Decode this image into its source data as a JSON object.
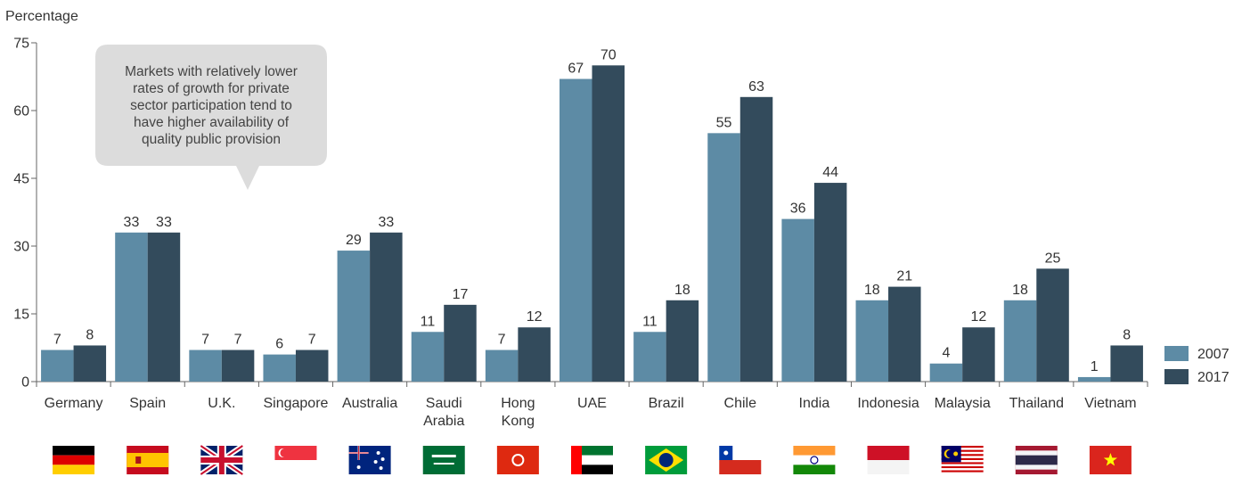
{
  "colors": {
    "series_2007": "#5d8ba5",
    "series_2017": "#334b5c",
    "axis": "#666666",
    "callout_bg": "#dcdcdc"
  },
  "annotation": {
    "text": "Markets with relatively lower\nrates of growth for private\nsector participation tend to\nhave higher availability of\nquality public provision"
  },
  "flags": [
    {
      "category": "Germany",
      "icon": "germany-flag-icon"
    },
    {
      "category": "Spain",
      "icon": "spain-flag-icon"
    },
    {
      "category": "U.K.",
      "icon": "uk-flag-icon"
    },
    {
      "category": "Singapore",
      "icon": "singapore-flag-icon"
    },
    {
      "category": "Australia",
      "icon": "australia-flag-icon"
    },
    {
      "category": "Saudi Arabia",
      "icon": "saudi-arabia-flag-icon"
    },
    {
      "category": "Hong Kong",
      "icon": "hong-kong-flag-icon"
    },
    {
      "category": "UAE",
      "icon": "uae-flag-icon"
    },
    {
      "category": "Brazil",
      "icon": "brazil-flag-icon"
    },
    {
      "category": "Chile",
      "icon": "chile-flag-icon"
    },
    {
      "category": "India",
      "icon": "india-flag-icon"
    },
    {
      "category": "Indonesia",
      "icon": "indonesia-flag-icon"
    },
    {
      "category": "Malaysia",
      "icon": "malaysia-flag-icon"
    },
    {
      "category": "Thailand",
      "icon": "thailand-flag-icon"
    },
    {
      "category": "Vietnam",
      "icon": "vietnam-flag-icon"
    }
  ],
  "chart_data": {
    "type": "bar",
    "title": "",
    "xlabel": "",
    "ylabel": "Percentage",
    "ylim": [
      0,
      75
    ],
    "yticks": [
      0,
      15,
      30,
      45,
      60,
      75
    ],
    "grid": false,
    "legend_position": "bottom-right",
    "categories": [
      "Germany",
      "Spain",
      "U.K.",
      "Singapore",
      "Australia",
      "Saudi Arabia",
      "Hong Kong",
      "UAE",
      "Brazil",
      "Chile",
      "India",
      "Indonesia",
      "Malaysia",
      "Thailand",
      "Vietnam"
    ],
    "category_lines": [
      [
        "Germany"
      ],
      [
        "Spain"
      ],
      [
        "U.K."
      ],
      [
        "Singapore"
      ],
      [
        "Australia"
      ],
      [
        "Saudi",
        "Arabia"
      ],
      [
        "Hong",
        "Kong"
      ],
      [
        "UAE"
      ],
      [
        "Brazil"
      ],
      [
        "Chile"
      ],
      [
        "India"
      ],
      [
        "Indonesia"
      ],
      [
        "Malaysia"
      ],
      [
        "Thailand"
      ],
      [
        "Vietnam"
      ]
    ],
    "series": [
      {
        "name": "2007",
        "values": [
          7,
          33,
          7,
          6,
          29,
          11,
          7,
          67,
          11,
          55,
          36,
          18,
          4,
          18,
          1
        ]
      },
      {
        "name": "2017",
        "values": [
          8,
          33,
          7,
          7,
          33,
          17,
          12,
          70,
          18,
          63,
          44,
          21,
          12,
          25,
          8
        ]
      }
    ]
  }
}
